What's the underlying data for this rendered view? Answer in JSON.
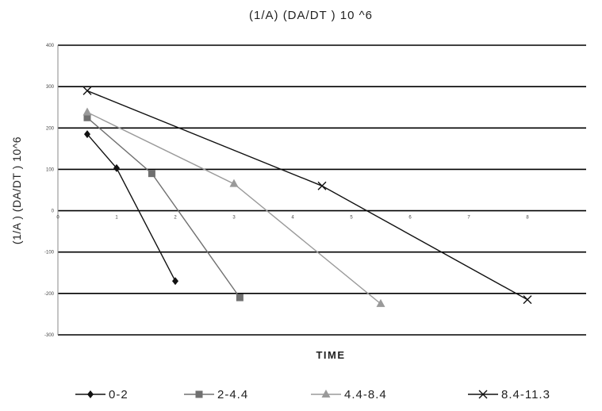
{
  "chart_data": {
    "type": "line",
    "title": "(1/A) (DA/DT ) 10 ^6",
    "xlabel": "TIME",
    "ylabel": "(1/A ) (DA/DT ) 10^6",
    "xlim": [
      0,
      9
    ],
    "ylim": [
      -300,
      400
    ],
    "xticks": [
      0,
      1,
      2,
      3,
      4,
      5,
      6,
      7,
      8
    ],
    "xtick_labels": [
      "0",
      "1",
      "2",
      "3",
      "4",
      "5",
      "6",
      "7",
      "8"
    ],
    "yticks": [
      400,
      300,
      200,
      100,
      0,
      -100,
      -200,
      -300
    ],
    "ytick_labels": [
      "400",
      "300",
      "200",
      "100",
      "0",
      "-100",
      "-200",
      "-300"
    ],
    "grid": "horizontal",
    "legend_position": "bottom",
    "series": [
      {
        "name": "0-2",
        "marker": "diamond",
        "color": "#111111",
        "x": [
          0.5,
          1.0,
          2.0
        ],
        "y": [
          185,
          103,
          -170
        ]
      },
      {
        "name": "2-4.4",
        "marker": "square",
        "color": "#707070",
        "x": [
          0.5,
          1.6,
          3.1
        ],
        "y": [
          225,
          90,
          -210
        ]
      },
      {
        "name": "4.4-8.4",
        "marker": "triangle",
        "color": "#9a9a9a",
        "x": [
          0.5,
          3.0,
          5.5
        ],
        "y": [
          238,
          65,
          -225
        ]
      },
      {
        "name": "8.4-11.3",
        "marker": "x",
        "color": "#111111",
        "x": [
          0.5,
          4.5,
          8.0
        ],
        "y": [
          290,
          60,
          -215
        ]
      }
    ]
  }
}
